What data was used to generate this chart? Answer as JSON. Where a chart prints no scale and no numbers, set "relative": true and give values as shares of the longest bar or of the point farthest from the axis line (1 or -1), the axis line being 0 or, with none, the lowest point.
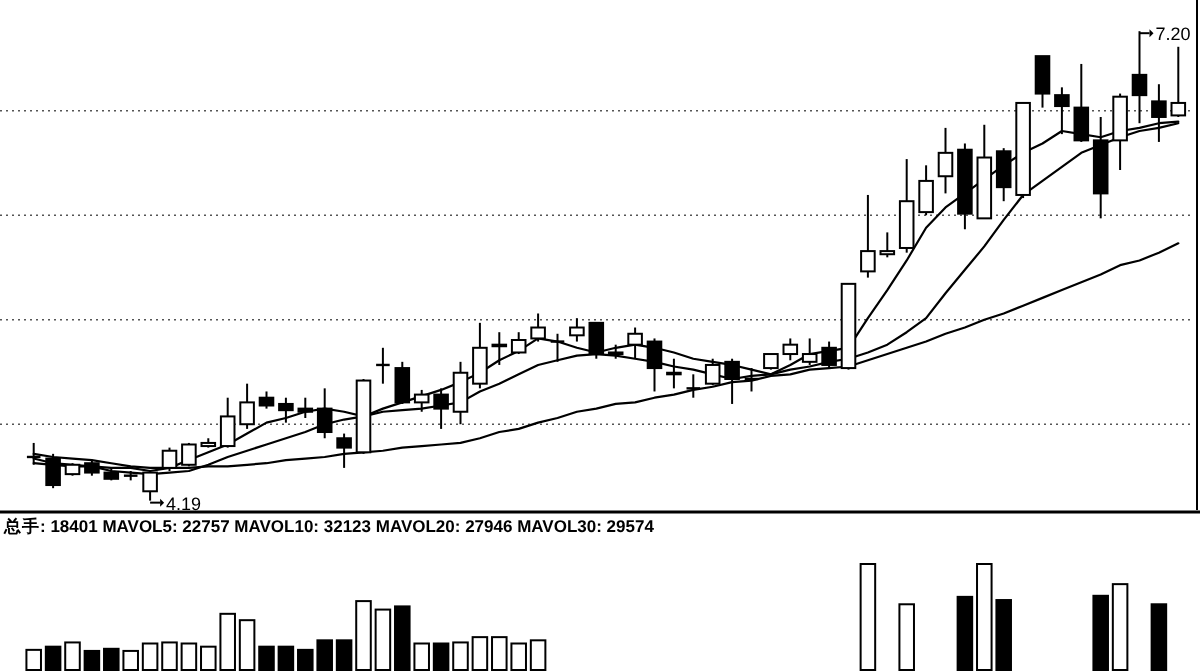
{
  "chart_data": [
    {
      "type": "candlestick",
      "categories": [
        null,
        null,
        null,
        null,
        null,
        null,
        null,
        null,
        null,
        null,
        null,
        null,
        null,
        null,
        null,
        null,
        null,
        null,
        null,
        null,
        null,
        null,
        null,
        null,
        null,
        null,
        null,
        null,
        null,
        null,
        null,
        null,
        null,
        null,
        null,
        null,
        null,
        null,
        null,
        null,
        null,
        null,
        null,
        null,
        null,
        null,
        null,
        null,
        null,
        null,
        null,
        null,
        null,
        null,
        null,
        null,
        null,
        null,
        null,
        null
      ],
      "ohlc": [
        [
          4.47,
          4.56,
          4.42,
          4.47
        ],
        [
          4.46,
          4.49,
          4.27,
          4.29
        ],
        [
          4.36,
          4.43,
          4.35,
          4.42
        ],
        [
          4.43,
          4.45,
          4.35,
          4.37
        ],
        [
          4.37,
          4.4,
          4.32,
          4.33
        ],
        [
          4.35,
          4.38,
          4.32,
          4.35
        ],
        [
          4.25,
          4.38,
          4.19,
          4.37
        ],
        [
          4.4,
          4.53,
          4.38,
          4.51
        ],
        [
          4.42,
          4.56,
          4.41,
          4.55
        ],
        [
          4.54,
          4.59,
          4.53,
          4.56
        ],
        [
          4.54,
          4.85,
          4.53,
          4.73
        ],
        [
          4.68,
          4.94,
          4.65,
          4.82
        ],
        [
          4.85,
          4.89,
          4.78,
          4.8
        ],
        [
          4.81,
          4.85,
          4.69,
          4.77
        ],
        [
          4.78,
          4.85,
          4.72,
          4.76
        ],
        [
          4.78,
          4.91,
          4.59,
          4.63
        ],
        [
          4.59,
          4.62,
          4.4,
          4.53
        ],
        [
          4.5,
          4.97,
          4.49,
          4.96
        ],
        [
          5.06,
          5.17,
          4.94,
          5.06
        ],
        [
          5.04,
          5.08,
          4.81,
          4.82
        ],
        [
          4.82,
          4.9,
          4.76,
          4.87
        ],
        [
          4.87,
          4.91,
          4.65,
          4.78
        ],
        [
          4.76,
          5.08,
          4.68,
          5.01
        ],
        [
          4.94,
          5.33,
          4.91,
          5.17
        ],
        [
          5.18,
          5.27,
          5.06,
          5.19
        ],
        [
          5.14,
          5.27,
          5.13,
          5.22
        ],
        [
          5.23,
          5.39,
          5.21,
          5.3
        ],
        [
          5.21,
          5.26,
          5.08,
          5.21
        ],
        [
          5.25,
          5.36,
          5.21,
          5.3
        ],
        [
          5.33,
          5.33,
          5.1,
          5.13
        ],
        [
          5.14,
          5.19,
          5.1,
          5.13
        ],
        [
          5.19,
          5.3,
          5.1,
          5.26
        ],
        [
          5.21,
          5.23,
          4.89,
          5.04
        ],
        [
          5.01,
          5.1,
          4.91,
          5.0
        ],
        [
          4.91,
          5.0,
          4.85,
          4.91
        ],
        [
          4.94,
          5.1,
          4.93,
          5.06
        ],
        [
          5.08,
          5.1,
          4.81,
          4.97
        ],
        [
          4.97,
          5.04,
          4.89,
          4.97
        ],
        [
          5.04,
          5.13,
          5.03,
          5.13
        ],
        [
          5.13,
          5.23,
          5.09,
          5.19
        ],
        [
          5.08,
          5.23,
          5.06,
          5.13
        ],
        [
          5.17,
          5.21,
          5.04,
          5.06
        ],
        [
          5.04,
          5.58,
          5.03,
          5.58
        ],
        [
          5.66,
          6.15,
          5.62,
          5.79
        ],
        [
          5.77,
          5.91,
          5.75,
          5.79
        ],
        [
          5.81,
          6.38,
          5.78,
          6.11
        ],
        [
          6.04,
          6.34,
          6.02,
          6.24
        ],
        [
          6.27,
          6.58,
          6.16,
          6.42
        ],
        [
          6.44,
          6.48,
          5.93,
          6.03
        ],
        [
          6.0,
          6.6,
          6.0,
          6.39
        ],
        [
          6.43,
          6.45,
          6.11,
          6.2
        ],
        [
          6.15,
          6.74,
          6.13,
          6.74
        ],
        [
          7.04,
          7.04,
          6.71,
          6.8
        ],
        [
          6.79,
          6.84,
          6.54,
          6.72
        ],
        [
          6.71,
          6.99,
          6.49,
          6.5
        ],
        [
          6.5,
          6.65,
          6.0,
          6.16
        ],
        [
          6.5,
          6.8,
          6.31,
          6.78
        ],
        [
          6.92,
          7.2,
          6.61,
          6.79
        ],
        [
          6.75,
          6.86,
          6.49,
          6.65
        ],
        [
          6.66,
          7.1,
          6.65,
          6.74
        ]
      ],
      "series": [
        {
          "type": "line",
          "color": "#000000",
          "values": [
            4.49,
            4.47,
            4.46,
            4.45,
            4.43,
            4.41,
            4.4,
            4.4,
            4.45,
            4.5,
            4.55,
            4.62,
            4.69,
            4.72,
            4.76,
            4.78,
            4.76,
            4.73,
            4.78,
            4.82,
            4.86,
            4.9,
            4.95,
            5.01,
            5.09,
            5.15,
            5.23,
            5.21,
            5.17,
            5.14,
            5.17,
            5.19,
            5.17,
            5.14,
            5.1,
            5.08,
            5.06,
            5.03,
            5.0,
            5.06,
            5.13,
            5.15,
            5.17,
            5.36,
            5.54,
            5.73,
            5.94,
            6.07,
            6.16,
            6.25,
            6.34,
            6.42,
            6.48,
            6.56,
            6.54,
            6.52,
            6.56,
            6.58,
            6.61,
            6.62
          ]
        },
        {
          "type": "line",
          "color": "#000000",
          "values": [
            4.46,
            4.43,
            4.42,
            4.41,
            4.38,
            4.37,
            4.36,
            4.37,
            4.38,
            4.42,
            4.47,
            4.51,
            4.55,
            4.59,
            4.63,
            4.68,
            4.71,
            4.73,
            4.76,
            4.77,
            4.78,
            4.8,
            4.82,
            4.89,
            4.94,
            5.0,
            5.06,
            5.09,
            5.12,
            5.13,
            5.12,
            5.1,
            5.08,
            5.05,
            5.03,
            5.0,
            4.97,
            4.99,
            5.0,
            5.03,
            5.05,
            5.08,
            5.1,
            5.14,
            5.19,
            5.27,
            5.36,
            5.52,
            5.67,
            5.82,
            5.99,
            6.15,
            6.24,
            6.33,
            6.42,
            6.47,
            6.52,
            6.56,
            6.58,
            6.61
          ]
        },
        {
          "type": "line",
          "color": "#000000",
          "values": [
            4.43,
            4.42,
            4.41,
            4.41,
            4.4,
            4.4,
            4.38,
            4.4,
            4.4,
            4.41,
            4.41,
            4.42,
            4.43,
            4.45,
            4.46,
            4.47,
            4.49,
            4.5,
            4.51,
            4.53,
            4.54,
            4.55,
            4.56,
            4.59,
            4.63,
            4.65,
            4.69,
            4.72,
            4.76,
            4.78,
            4.81,
            4.82,
            4.85,
            4.87,
            4.9,
            4.92,
            4.95,
            4.96,
            4.99,
            5.0,
            5.03,
            5.04,
            5.05,
            5.09,
            5.13,
            5.17,
            5.21,
            5.26,
            5.3,
            5.35,
            5.39,
            5.44,
            5.49,
            5.54,
            5.59,
            5.64,
            5.7,
            5.73,
            5.78,
            5.84
          ]
        }
      ],
      "ylim": [
        4.13,
        7.4
      ],
      "yticks": [
        {
          "value": 4.68,
          "label": null
        },
        {
          "value": 5.35,
          "label": null
        },
        {
          "value": 6.02,
          "label": null
        },
        {
          "value": 6.69,
          "label": null
        }
      ],
      "grid": "y",
      "annotations": [
        "7.20",
        "4.19"
      ]
    },
    {
      "type": "bar",
      "relative": true,
      "title": "总手: 18401 MAVOL5: 22757 MAVOL10: 32123 MAVOL20: 27946 MAVOL30: 29574",
      "categories": [
        null,
        null,
        null,
        null,
        null,
        null,
        null,
        null,
        null,
        null,
        null,
        null,
        null,
        null,
        null,
        null,
        null,
        null,
        null,
        null,
        null,
        null,
        null,
        null,
        null,
        null,
        null,
        null,
        null,
        null,
        null,
        null,
        null,
        null,
        null,
        null,
        null,
        null,
        null,
        null,
        null,
        null,
        null,
        null,
        null,
        null,
        null,
        null,
        null,
        null,
        null,
        null,
        null,
        null,
        null,
        null,
        null,
        null,
        null,
        null
      ],
      "values": [
        0.19,
        0.22,
        0.26,
        0.18,
        0.2,
        0.18,
        0.25,
        0.26,
        0.25,
        0.22,
        0.53,
        0.47,
        0.22,
        0.22,
        0.19,
        0.28,
        0.28,
        0.65,
        0.57,
        0.6,
        0.25,
        0.25,
        0.26,
        0.31,
        0.31,
        0.25,
        0.28,
        null,
        null,
        null,
        null,
        null,
        null,
        null,
        null,
        null,
        null,
        null,
        null,
        null,
        null,
        null,
        null,
        1.0,
        null,
        0.62,
        null,
        null,
        0.69,
        1.0,
        0.66,
        null,
        null,
        null,
        null,
        0.7,
        0.81,
        null,
        0.62,
        null
      ],
      "colors": [
        "#ffffff",
        "#000000",
        "#ffffff",
        "#000000",
        "#000000",
        "#ffffff",
        "#ffffff",
        "#ffffff",
        "#ffffff",
        "#ffffff",
        "#ffffff",
        "#ffffff",
        "#000000",
        "#000000",
        "#000000",
        "#000000",
        "#000000",
        "#ffffff",
        "#ffffff",
        "#000000",
        "#ffffff",
        "#000000",
        "#ffffff",
        "#ffffff",
        "#ffffff",
        "#ffffff",
        "#ffffff",
        null,
        null,
        null,
        null,
        null,
        null,
        null,
        null,
        null,
        null,
        null,
        null,
        null,
        null,
        null,
        null,
        "#ffffff",
        null,
        "#ffffff",
        null,
        null,
        "#000000",
        "#ffffff",
        "#000000",
        null,
        null,
        null,
        null,
        "#000000",
        "#ffffff",
        null,
        "#000000",
        null
      ]
    }
  ]
}
